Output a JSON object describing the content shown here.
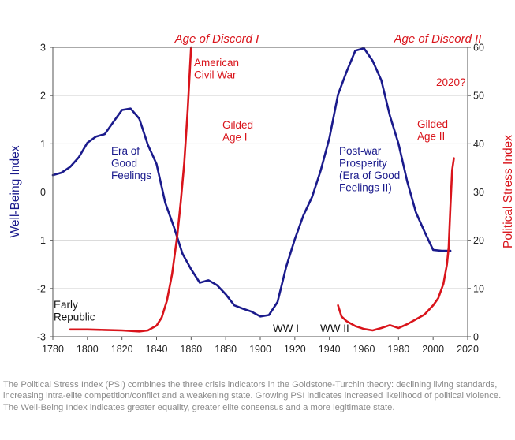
{
  "chart_data": {
    "type": "line",
    "xlim": [
      1780,
      2020
    ],
    "x_ticks": [
      "1780",
      "1800",
      "1820",
      "1840",
      "1860",
      "1880",
      "1900",
      "1920",
      "1940",
      "1960",
      "1980",
      "2000",
      "2020"
    ],
    "y_left": {
      "label": "Well-Being Index",
      "ylim": [
        -3,
        3
      ],
      "ticks": [
        "3",
        "2",
        "1",
        "0",
        "-1",
        "-2",
        "-3"
      ],
      "color": "#1a1a8c"
    },
    "y_right": {
      "label": "Political Stress Index",
      "ylim": [
        0,
        60
      ],
      "ticks": [
        "60",
        "50",
        "40",
        "30",
        "20",
        "10",
        "0"
      ],
      "color": "#d9141b"
    },
    "series": [
      {
        "axis": "left",
        "color": "#1a1a8c",
        "x": [
          1780,
          1785,
          1790,
          1795,
          1800,
          1805,
          1810,
          1815,
          1820,
          1825,
          1830,
          1835,
          1840,
          1845,
          1850,
          1855,
          1860,
          1865,
          1870,
          1875,
          1880,
          1885,
          1890,
          1895,
          1900,
          1905,
          1910,
          1915,
          1920,
          1925,
          1930,
          1935,
          1940,
          1945,
          1950,
          1955,
          1960,
          1965,
          1970,
          1975,
          1980,
          1985,
          1990,
          1995,
          2000,
          2005,
          2010
        ],
        "y": [
          0.35,
          0.4,
          0.52,
          0.72,
          1.02,
          1.15,
          1.2,
          1.45,
          1.7,
          1.73,
          1.52,
          0.98,
          0.58,
          -0.22,
          -0.72,
          -1.28,
          -1.6,
          -1.88,
          -1.83,
          -1.93,
          -2.12,
          -2.35,
          -2.42,
          -2.48,
          -2.58,
          -2.55,
          -2.28,
          -1.55,
          -0.98,
          -0.48,
          -0.1,
          0.45,
          1.12,
          2.02,
          2.5,
          2.93,
          2.98,
          2.72,
          2.32,
          1.58,
          1.0,
          0.22,
          -0.42,
          -0.82,
          -1.2,
          -1.22,
          -1.22
        ]
      },
      {
        "axis": "right",
        "color": "#d9141b",
        "x": [
          1790,
          1800,
          1810,
          1820,
          1830,
          1835,
          1840,
          1843,
          1846,
          1849,
          1852,
          1854,
          1856,
          1858,
          1860
        ],
        "y": [
          1.5,
          1.5,
          1.4,
          1.3,
          1.1,
          1.3,
          2.3,
          4.0,
          7.5,
          13.0,
          21.0,
          28.0,
          36.0,
          47.0,
          60.0
        ]
      },
      {
        "axis": "right",
        "color": "#d9141b",
        "x": [
          1945,
          1947,
          1950,
          1955,
          1960,
          1965,
          1970,
          1975,
          1980,
          1985,
          1990,
          1995,
          2000,
          2003,
          2006,
          2008,
          2009,
          2010,
          2011,
          2012
        ],
        "y": [
          6.5,
          4.2,
          3.2,
          2.2,
          1.6,
          1.3,
          1.8,
          2.4,
          1.8,
          2.6,
          3.6,
          4.6,
          6.5,
          8.0,
          11.0,
          15.0,
          18.5,
          27.0,
          34.5,
          37.0
        ]
      }
    ],
    "annotations": [
      {
        "text": "Early\nRepublic",
        "color": "black"
      },
      {
        "text": "Era of\nGood\nFeelings",
        "color": "blue"
      },
      {
        "text": "American\nCivil War",
        "color": "red"
      },
      {
        "text": "Gilded\nAge I",
        "color": "red"
      },
      {
        "text": "Post-war\nProsperity\n(Era of Good\nFeelings II)",
        "color": "blue"
      },
      {
        "text": "Gilded\nAge II",
        "color": "red"
      },
      {
        "text": "2020?",
        "color": "red"
      },
      {
        "text": "WW I",
        "color": "black"
      },
      {
        "text": "WW II",
        "color": "black"
      }
    ],
    "headers": [
      "Age of Discord I",
      "Age of Discord II"
    ]
  },
  "caption": "The Political Stress Index (PSI) combines the three crisis indicators in the Goldstone-Turchin theory: declining living standards, increasing intra-elite competition/conflict and a weakening state. Growing PSI indicates increased likelihood of political violence. The Well-Being Index indicates greater equality, greater elite consensus and a more legitimate state."
}
